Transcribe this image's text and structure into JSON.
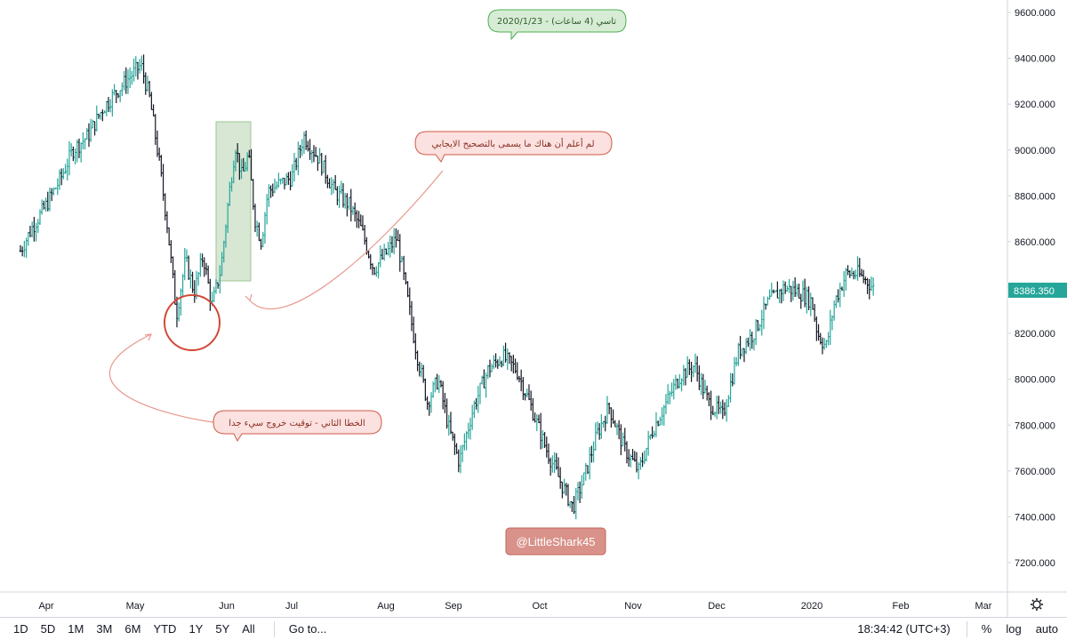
{
  "chart_data": {
    "type": "ohlc",
    "title": "تاسي (4 ساعات) - 2020/1/23",
    "y_axis": {
      "ticks": [
        "9600.000",
        "9400.000",
        "9200.000",
        "9000.000",
        "8800.000",
        "8600.000",
        "8400.000",
        "8200.000",
        "8000.000",
        "7800.000",
        "7600.000",
        "7400.000",
        "7200.000"
      ],
      "ylim": [
        7100,
        9700
      ],
      "position": "right"
    },
    "x_axis": {
      "ticks": [
        "Apr",
        "May",
        "Jun",
        "Jul",
        "Aug",
        "Sep",
        "Oct",
        "Nov",
        "Dec",
        "2020",
        "Feb",
        "Mar"
      ]
    },
    "last_price": {
      "value": 8386.35,
      "label": "8386.350"
    },
    "series": [
      {
        "values": [
          {
            "x": "Mar 23",
            "y": 8560
          },
          {
            "x": "Mar 27",
            "y": 8660
          },
          {
            "x": "Apr 1",
            "y": 8760
          },
          {
            "x": "Apr 6",
            "y": 8880
          },
          {
            "x": "Apr 10",
            "y": 9000
          },
          {
            "x": "Apr 15",
            "y": 9060
          },
          {
            "x": "Apr 20",
            "y": 9180
          },
          {
            "x": "Apr 25",
            "y": 9260
          },
          {
            "x": "Apr 30",
            "y": 9330
          },
          {
            "x": "May 3",
            "y": 9370
          },
          {
            "x": "May 6",
            "y": 9220
          },
          {
            "x": "May 9",
            "y": 8960
          },
          {
            "x": "May 12",
            "y": 8660
          },
          {
            "x": "May 15",
            "y": 8280
          },
          {
            "x": "May 18",
            "y": 8520
          },
          {
            "x": "May 21",
            "y": 8380
          },
          {
            "x": "May 24",
            "y": 8540
          },
          {
            "x": "May 27",
            "y": 8320
          },
          {
            "x": "May 30",
            "y": 8480
          },
          {
            "x": "Jun 2",
            "y": 8800
          },
          {
            "x": "Jun 5",
            "y": 9020
          },
          {
            "x": "Jun 8",
            "y": 8880
          },
          {
            "x": "Jun 11",
            "y": 8980
          },
          {
            "x": "Jun 14",
            "y": 8700
          },
          {
            "x": "Jun 17",
            "y": 8600
          },
          {
            "x": "Jun 20",
            "y": 8820
          },
          {
            "x": "Jun 25",
            "y": 8850
          },
          {
            "x": "Jul 1",
            "y": 8880
          },
          {
            "x": "Jul 5",
            "y": 9060
          },
          {
            "x": "Jul 10",
            "y": 8960
          },
          {
            "x": "Jul 15",
            "y": 8820
          },
          {
            "x": "Jul 20",
            "y": 8760
          },
          {
            "x": "Jul 24",
            "y": 8650
          },
          {
            "x": "Jul 28",
            "y": 8480
          },
          {
            "x": "Aug 2",
            "y": 8560
          },
          {
            "x": "Aug 6",
            "y": 8620
          },
          {
            "x": "Aug 10",
            "y": 8400
          },
          {
            "x": "Aug 15",
            "y": 8120
          },
          {
            "x": "Aug 20",
            "y": 7900
          },
          {
            "x": "Aug 25",
            "y": 8000
          },
          {
            "x": "Aug 30",
            "y": 7780
          },
          {
            "x": "Sep 3",
            "y": 7640
          },
          {
            "x": "Sep 8",
            "y": 7880
          },
          {
            "x": "Sep 13",
            "y": 8040
          },
          {
            "x": "Sep 18",
            "y": 8100
          },
          {
            "x": "Sep 23",
            "y": 8040
          },
          {
            "x": "Sep 28",
            "y": 7880
          },
          {
            "x": "Oct 3",
            "y": 7700
          },
          {
            "x": "Oct 8",
            "y": 7550
          },
          {
            "x": "Oct 12",
            "y": 7440
          },
          {
            "x": "Oct 16",
            "y": 7580
          },
          {
            "x": "Oct 20",
            "y": 7760
          },
          {
            "x": "Oct 24",
            "y": 7880
          },
          {
            "x": "Oct 29",
            "y": 7700
          },
          {
            "x": "Nov 3",
            "y": 7600
          },
          {
            "x": "Nov 8",
            "y": 7780
          },
          {
            "x": "Nov 13",
            "y": 7900
          },
          {
            "x": "Nov 18",
            "y": 8020
          },
          {
            "x": "Nov 23",
            "y": 8060
          },
          {
            "x": "Nov 28",
            "y": 7900
          },
          {
            "x": "Dec 3",
            "y": 7840
          },
          {
            "x": "Dec 8",
            "y": 8120
          },
          {
            "x": "Dec 13",
            "y": 8200
          },
          {
            "x": "Dec 18",
            "y": 8340
          },
          {
            "x": "Dec 23",
            "y": 8400
          },
          {
            "x": "Dec 28",
            "y": 8380
          },
          {
            "x": "Jan 1",
            "y": 8340
          },
          {
            "x": "Jan 3",
            "y": 8200
          },
          {
            "x": "Jan 6",
            "y": 8140
          },
          {
            "x": "Jan 9",
            "y": 8340
          },
          {
            "x": "Jan 13",
            "y": 8460
          },
          {
            "x": "Jan 17",
            "y": 8460
          },
          {
            "x": "Jan 21",
            "y": 8420
          },
          {
            "x": "Jan 23",
            "y": 8386
          }
        ]
      }
    ]
  },
  "annotations": {
    "title_bubble": "تاسي (4 ساعات) - 2020/1/23",
    "positive_correction_note": "لم أعلم أن هناك ما يسمى بالتصحيح الايجابي",
    "second_mistake_note": "الخطا الثاني - توقيت خروج سيء جدا",
    "watermark": "@LittleShark45"
  },
  "toolbar": {
    "ranges": [
      "1D",
      "5D",
      "1M",
      "3M",
      "6M",
      "YTD",
      "1Y",
      "5Y",
      "All"
    ],
    "goto": "Go to...",
    "clock": "18:34:42 (UTC+3)",
    "percent": "%",
    "log": "log",
    "auto": "auto"
  },
  "colors": {
    "up": "#26a69a",
    "down": "#131722",
    "price_label_bg": "#26a69a",
    "annotation_red": "#d14836",
    "title_bubble_fill": "#d7ecd5",
    "title_bubble_stroke": "#4caf50",
    "note_bubble_fill": "#fbe1df",
    "note_bubble_stroke": "#d05a4a",
    "highlight_fill": "#c9dfc6",
    "watermark_bg": "#d9928a"
  }
}
